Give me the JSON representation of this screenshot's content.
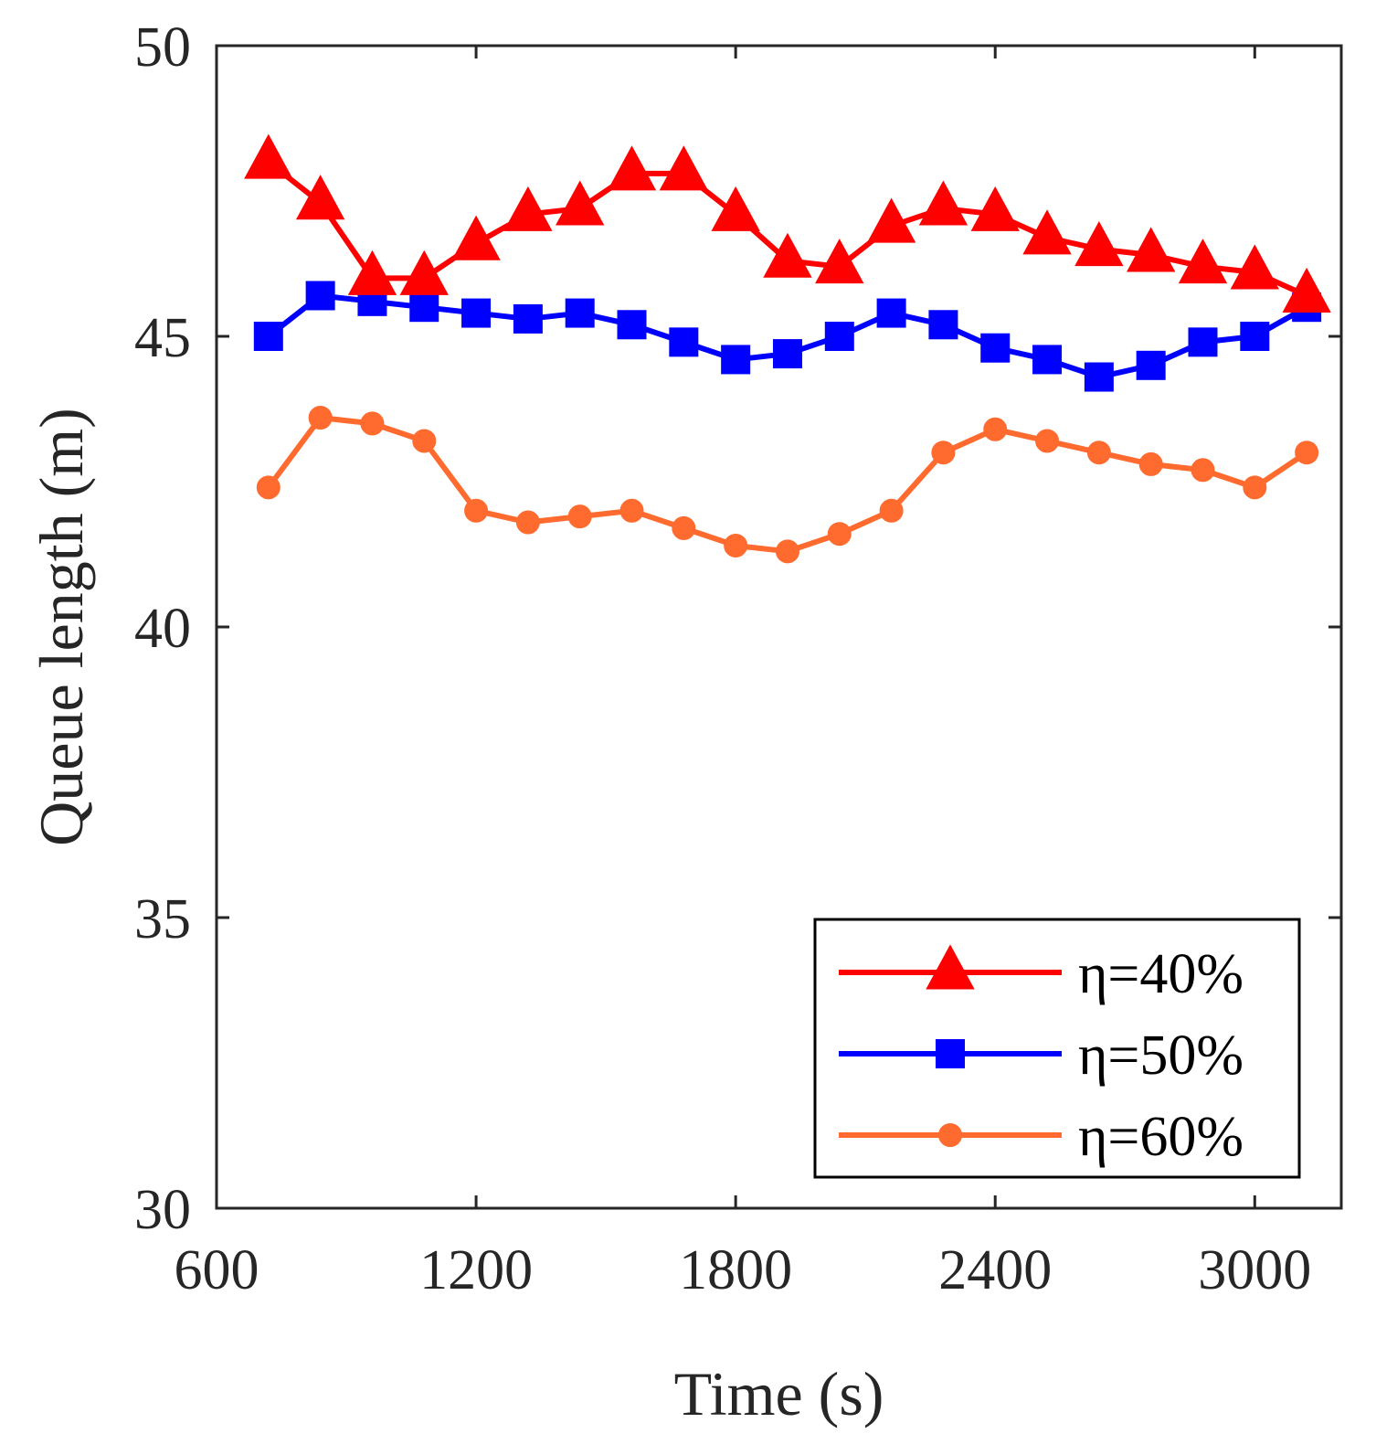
{
  "chart_data": {
    "type": "line",
    "title": "",
    "xlabel": "Time (s)",
    "ylabel": "Queue length (m)",
    "xlim": [
      600,
      3200
    ],
    "ylim": [
      30,
      50
    ],
    "xticks": [
      600,
      1200,
      1800,
      2400,
      3000
    ],
    "yticks": [
      30,
      35,
      40,
      45,
      50
    ],
    "grid": false,
    "legend_position": "bottom-right",
    "x": [
      720,
      840,
      960,
      1080,
      1200,
      1320,
      1440,
      1560,
      1680,
      1800,
      1920,
      2040,
      2160,
      2280,
      2400,
      2520,
      2640,
      2760,
      2880,
      3000,
      3120
    ],
    "series": [
      {
        "name": "η=40%",
        "color": "#ff0000",
        "marker": "triangle",
        "values": [
          48.0,
          47.3,
          46.0,
          46.0,
          46.6,
          47.1,
          47.2,
          47.8,
          47.8,
          47.1,
          46.3,
          46.2,
          46.9,
          47.2,
          47.1,
          46.7,
          46.5,
          46.4,
          46.2,
          46.1,
          45.7
        ]
      },
      {
        "name": "η=50%",
        "color": "#0000ff",
        "marker": "square",
        "values": [
          45.0,
          45.7,
          45.6,
          45.5,
          45.4,
          45.3,
          45.4,
          45.2,
          44.9,
          44.6,
          44.7,
          45.0,
          45.4,
          45.2,
          44.8,
          44.6,
          44.3,
          44.5,
          44.9,
          45.0,
          45.5
        ]
      },
      {
        "name": "η=60%",
        "color": "#ff6a2e",
        "marker": "circle",
        "values": [
          42.4,
          43.6,
          43.5,
          43.2,
          42.0,
          41.8,
          41.9,
          42.0,
          41.7,
          41.4,
          41.3,
          41.6,
          42.0,
          43.0,
          43.4,
          43.2,
          43.0,
          42.8,
          42.7,
          42.4,
          43.0
        ]
      }
    ]
  }
}
